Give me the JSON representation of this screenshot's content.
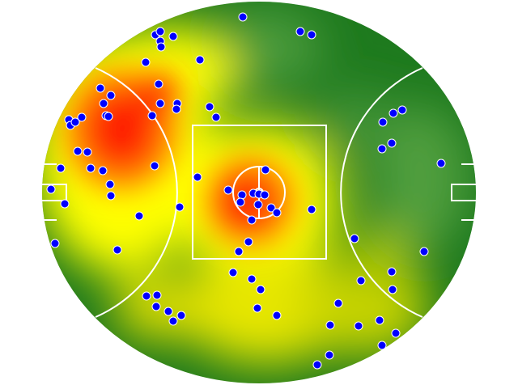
{
  "chart_data": {
    "type": "heatmap",
    "overlay": "scatter",
    "background": "australian-football-field",
    "colors": {
      "low": "#1e7a1e",
      "mid": "#ffff00",
      "high": "#ff2000",
      "point": "#0000ff",
      "point_outline": "#ffffff",
      "lines": "#ffffff"
    },
    "points": [
      [
        -20,
        217
      ],
      [
        51,
        199
      ],
      [
        65,
        195
      ],
      [
        -128,
        195
      ],
      [
        -122,
        199
      ],
      [
        -106,
        193
      ],
      [
        -122,
        187
      ],
      [
        -121,
        180
      ],
      [
        -73,
        164
      ],
      [
        -140,
        161
      ],
      [
        -124,
        134
      ],
      [
        -196,
        129
      ],
      [
        -183,
        120
      ],
      [
        -192,
        110
      ],
      [
        -122,
        110
      ],
      [
        -101,
        110
      ],
      [
        -102,
        103
      ],
      [
        -132,
        95
      ],
      [
        -61,
        106
      ],
      [
        -53,
        93
      ],
      [
        -219,
        93
      ],
      [
        -235,
        90
      ],
      [
        -233,
        83
      ],
      [
        -227,
        87
      ],
      [
        -189,
        95
      ],
      [
        -186,
        94
      ],
      [
        -224,
        51
      ],
      [
        -212,
        50
      ],
      [
        -208,
        30
      ],
      [
        -193,
        27
      ],
      [
        -245,
        30
      ],
      [
        -129,
        33
      ],
      [
        -184,
        10
      ],
      [
        -183,
        -4
      ],
      [
        -257,
        4
      ],
      [
        -240,
        -14
      ],
      [
        -148,
        -29
      ],
      [
        -252,
        -63
      ],
      [
        -175,
        -71
      ],
      [
        -76,
        19
      ],
      [
        -98,
        -18
      ],
      [
        8,
        28
      ],
      [
        -38,
        3
      ],
      [
        -21,
        -3
      ],
      [
        -23,
        -12
      ],
      [
        -7,
        -1
      ],
      [
        0,
        -2
      ],
      [
        7,
        -3
      ],
      [
        -1,
        -15
      ],
      [
        15,
        -19
      ],
      [
        22,
        -25
      ],
      [
        -9,
        -34
      ],
      [
        -13,
        -61
      ],
      [
        -25,
        -73
      ],
      [
        65,
        -21
      ],
      [
        -32,
        -99
      ],
      [
        -9,
        -107
      ],
      [
        2,
        -120
      ],
      [
        -2,
        -143
      ],
      [
        22,
        -152
      ],
      [
        -139,
        -128
      ],
      [
        -126,
        -127
      ],
      [
        -127,
        -141
      ],
      [
        -112,
        -147
      ],
      [
        -96,
        -152
      ],
      [
        -106,
        -159
      ],
      [
        153,
        87
      ],
      [
        166,
        98
      ],
      [
        177,
        102
      ],
      [
        152,
        54
      ],
      [
        164,
        61
      ],
      [
        225,
        36
      ],
      [
        118,
        -57
      ],
      [
        204,
        -73
      ],
      [
        164,
        -98
      ],
      [
        126,
        -109
      ],
      [
        165,
        -120
      ],
      [
        98,
        -137
      ],
      [
        88,
        -164
      ],
      [
        123,
        -165
      ],
      [
        149,
        -158
      ],
      [
        169,
        -174
      ],
      [
        152,
        -189
      ],
      [
        87,
        -201
      ],
      [
        72,
        -213
      ]
    ],
    "hotspots": [
      {
        "label": "left-forward-pocket",
        "intensity": "high"
      },
      {
        "label": "centre-square",
        "intensity": "high"
      }
    ]
  }
}
